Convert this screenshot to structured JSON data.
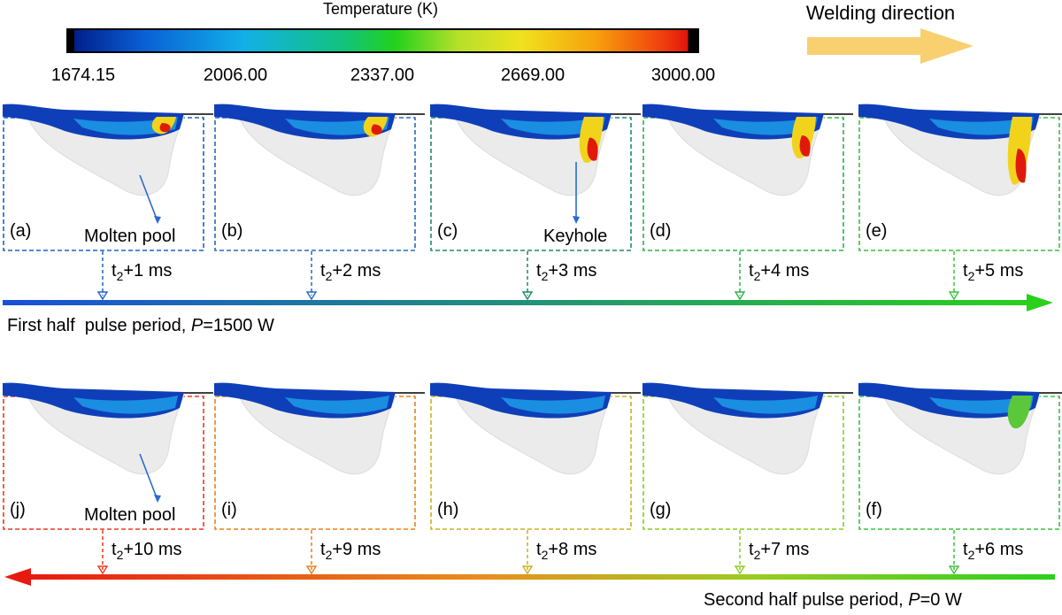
{
  "colorbar": {
    "title": "Temperature (K)",
    "ticks": [
      "1674.15",
      "2006.00",
      "2337.00",
      "2669.00",
      "3000.00"
    ]
  },
  "welding_direction": "Welding direction",
  "top_row": {
    "phase_label_prefix": "First half  pulse period, ",
    "phase_label_var": "P",
    "phase_label_suffix": "=1500 W",
    "panels": [
      {
        "label": "(a)",
        "time": "+1 ms",
        "annotation": "Molten pool",
        "border": "#2060c8"
      },
      {
        "label": "(b)",
        "time": "+2 ms",
        "annotation": "",
        "border": "#2a68c0"
      },
      {
        "label": "(c)",
        "time": "+3 ms",
        "annotation": "Keyhole",
        "border": "#1f8a6a"
      },
      {
        "label": "(d)",
        "time": "+4 ms",
        "annotation": "",
        "border": "#2fb04a"
      },
      {
        "label": "(e)",
        "time": "+5 ms",
        "annotation": "",
        "border": "#3cc23c"
      }
    ]
  },
  "bottom_row": {
    "phase_label_prefix": "Second half pulse period, ",
    "phase_label_var": "P",
    "phase_label_suffix": "=0 W",
    "panels": [
      {
        "label": "(j)",
        "time": "+10 ms",
        "annotation": "Molten pool",
        "border": "#e83a22"
      },
      {
        "label": "(i)",
        "time": "+9 ms",
        "annotation": "",
        "border": "#e8801c"
      },
      {
        "label": "(h)",
        "time": "+8 ms",
        "annotation": "",
        "border": "#c8b020"
      },
      {
        "label": "(g)",
        "time": "+7 ms",
        "annotation": "",
        "border": "#8ccc20"
      },
      {
        "label": "(f)",
        "time": "+6 ms",
        "annotation": "",
        "border": "#3cc23c"
      }
    ]
  },
  "time_prefix": "t",
  "time_sub": "2",
  "colors": {
    "arrow_top_start": "#1a4fd8",
    "arrow_top_end": "#2bd01c",
    "arrow_bottom_start": "#e81a10",
    "arrow_bottom_end": "#2bd01c",
    "welding_arrow": "#f8d070",
    "pointer": "#2a6ad0"
  }
}
